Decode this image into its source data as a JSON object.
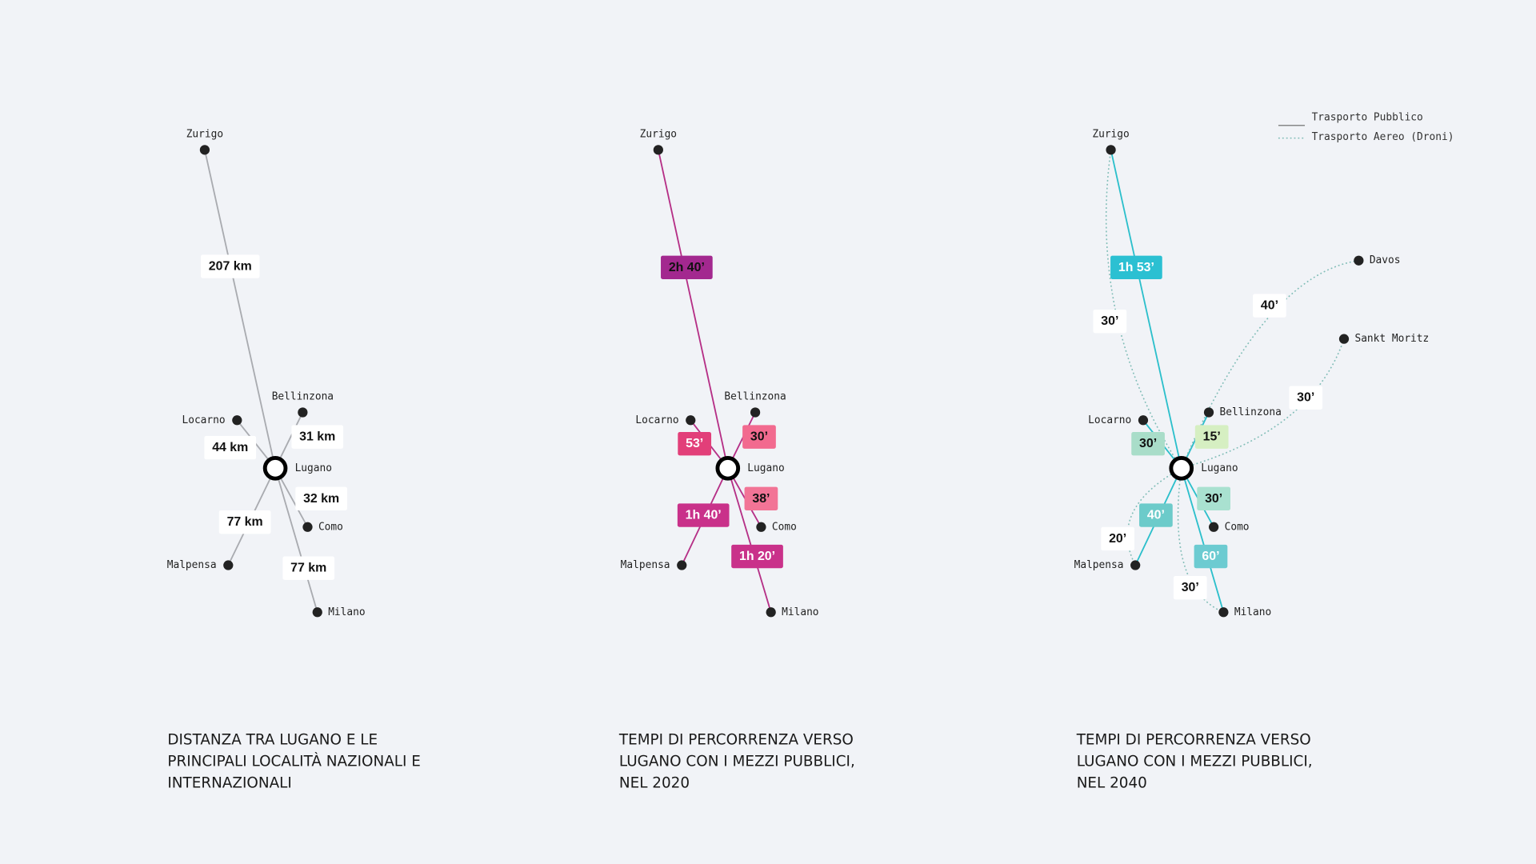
{
  "legend": [
    {
      "label": "Trasporto Pubblico",
      "style": "solid"
    },
    {
      "label": "Trasporto Aereo (Droni)",
      "style": "dotted"
    }
  ],
  "panels": [
    {
      "title": [
        "DISTANZA TRA LUGANO E LE",
        "PRINCIPALI LOCALITÀ NAZIONALI E",
        "INTERNAZIONALI"
      ],
      "center": "Lugano",
      "line_color": "#a9abb0",
      "nodes": [
        {
          "label": "Zurigo",
          "edges": [
            {
              "label": "207 km",
              "color": "#ffffff",
              "style": "solid"
            }
          ]
        },
        {
          "label": "Bellinzona",
          "edges": [
            {
              "label": "31 km",
              "color": "#ffffff",
              "style": "solid"
            }
          ]
        },
        {
          "label": "Locarno",
          "edges": [
            {
              "label": "44 km",
              "color": "#ffffff",
              "style": "solid"
            }
          ]
        },
        {
          "label": "Como",
          "edges": [
            {
              "label": "32 km",
              "color": "#ffffff",
              "style": "solid"
            }
          ]
        },
        {
          "label": "Malpensa",
          "edges": [
            {
              "label": "77 km",
              "color": "#ffffff",
              "style": "solid"
            }
          ]
        },
        {
          "label": "Milano",
          "edges": [
            {
              "label": "77 km",
              "color": "#ffffff",
              "style": "solid"
            }
          ]
        }
      ]
    },
    {
      "title": [
        "TEMPI DI PERCORRENZA VERSO",
        "LUGANO CON I MEZZI PUBBLICI,",
        "NEL 2020"
      ],
      "center": "Lugano",
      "line_color": "#b52f86",
      "nodes": [
        {
          "label": "Zurigo",
          "edges": [
            {
              "label": "2h 40’",
              "color": "#a3288f",
              "style": "solid"
            }
          ]
        },
        {
          "label": "Bellinzona",
          "edges": [
            {
              "label": "30’",
              "color": "#f26a8f",
              "style": "solid"
            }
          ]
        },
        {
          "label": "Locarno",
          "edges": [
            {
              "label": "53’",
              "color": "#e23f79",
              "style": "solid"
            }
          ]
        },
        {
          "label": "Como",
          "edges": [
            {
              "label": "38’",
              "color": "#f27496",
              "style": "solid"
            }
          ]
        },
        {
          "label": "Malpensa",
          "edges": [
            {
              "label": "1h 40’",
              "color": "#c9318a",
              "style": "solid"
            }
          ]
        },
        {
          "label": "Milano",
          "edges": [
            {
              "label": "1h 20’",
              "color": "#c9318a",
              "style": "solid"
            }
          ]
        }
      ]
    },
    {
      "title": [
        "TEMPI DI PERCORRENZA VERSO",
        "LUGANO CON I MEZZI PUBBLICI,",
        "NEL 2040"
      ],
      "center": "Lugano",
      "line_color": "#2cbfcb",
      "nodes": [
        {
          "label": "Zurigo",
          "edges": [
            {
              "label": "1h 53’",
              "color": "#2bc0d2",
              "style": "solid"
            },
            {
              "label": "30’",
              "color": "#ffffff",
              "style": "dotted"
            }
          ]
        },
        {
          "label": "Bellinzona",
          "edges": [
            {
              "label": "15’",
              "color": "#d6efc2",
              "style": "solid"
            }
          ]
        },
        {
          "label": "Locarno",
          "edges": [
            {
              "label": "30’",
              "color": "#a9ddc9",
              "style": "solid"
            }
          ]
        },
        {
          "label": "Como",
          "edges": [
            {
              "label": "30’",
              "color": "#a9e1d0",
              "style": "solid"
            }
          ]
        },
        {
          "label": "Malpensa",
          "edges": [
            {
              "label": "40’",
              "color": "#6ccbca",
              "style": "solid"
            },
            {
              "label": "20’",
              "color": "#ffffff",
              "style": "dotted"
            }
          ]
        },
        {
          "label": "Milano",
          "edges": [
            {
              "label": "60’",
              "color": "#6ccbd1",
              "style": "solid"
            },
            {
              "label": "30’",
              "color": "#ffffff",
              "style": "dotted"
            }
          ]
        },
        {
          "label": "Davos",
          "edges": [
            {
              "label": "40’",
              "color": "#ffffff",
              "style": "dotted"
            }
          ]
        },
        {
          "label": "Sankt Moritz",
          "edges": [
            {
              "label": "30’",
              "color": "#ffffff",
              "style": "dotted"
            }
          ]
        }
      ]
    }
  ]
}
